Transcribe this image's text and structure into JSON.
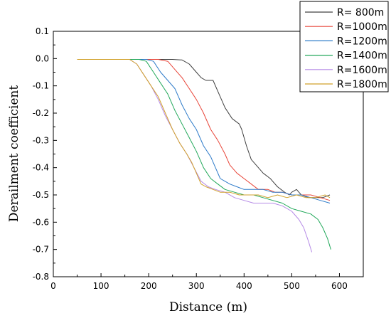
{
  "chart_data": {
    "type": "line",
    "xlabel": "Distance (m)",
    "ylabel": "Derailment coefficient",
    "xlim": [
      0,
      650
    ],
    "ylim": [
      -0.8,
      0.1
    ],
    "xticks": [
      0,
      100,
      200,
      300,
      400,
      500,
      600
    ],
    "xtick_labels": [
      "0",
      "100",
      "200",
      "300",
      "400",
      "500",
      "600"
    ],
    "yticks": [
      0.1,
      0.0,
      -0.1,
      -0.2,
      -0.3,
      -0.4,
      -0.5,
      -0.6,
      -0.7,
      -0.8
    ],
    "ytick_labels": [
      "0.1",
      "0.0",
      "-0.1",
      "-0.2",
      "-0.3",
      "-0.4",
      "-0.5",
      "-0.6",
      "-0.7",
      "-0.8"
    ],
    "grid": false,
    "legend_position": "top-right",
    "series": [
      {
        "name": "R= 800m",
        "color": "#404040",
        "points": [
          [
            50,
            -0.003
          ],
          [
            150,
            -0.003
          ],
          [
            250,
            -0.003
          ],
          [
            270,
            -0.005
          ],
          [
            285,
            -0.02
          ],
          [
            300,
            -0.05
          ],
          [
            310,
            -0.07
          ],
          [
            320,
            -0.08
          ],
          [
            335,
            -0.08
          ],
          [
            345,
            -0.12
          ],
          [
            360,
            -0.18
          ],
          [
            375,
            -0.22
          ],
          [
            390,
            -0.24
          ],
          [
            395,
            -0.26
          ],
          [
            405,
            -0.32
          ],
          [
            415,
            -0.37
          ],
          [
            425,
            -0.39
          ],
          [
            440,
            -0.42
          ],
          [
            455,
            -0.44
          ],
          [
            470,
            -0.47
          ],
          [
            485,
            -0.49
          ],
          [
            495,
            -0.5
          ],
          [
            500,
            -0.49
          ],
          [
            510,
            -0.48
          ],
          [
            520,
            -0.5
          ],
          [
            535,
            -0.51
          ],
          [
            555,
            -0.51
          ],
          [
            565,
            -0.51
          ],
          [
            580,
            -0.5
          ]
        ]
      },
      {
        "name": "R=1000m",
        "color": "#e8463a",
        "points": [
          [
            50,
            -0.003
          ],
          [
            150,
            -0.003
          ],
          [
            220,
            -0.003
          ],
          [
            240,
            -0.01
          ],
          [
            255,
            -0.04
          ],
          [
            270,
            -0.07
          ],
          [
            285,
            -0.11
          ],
          [
            300,
            -0.15
          ],
          [
            315,
            -0.2
          ],
          [
            330,
            -0.26
          ],
          [
            345,
            -0.3
          ],
          [
            360,
            -0.35
          ],
          [
            370,
            -0.39
          ],
          [
            385,
            -0.42
          ],
          [
            400,
            -0.44
          ],
          [
            415,
            -0.46
          ],
          [
            430,
            -0.48
          ],
          [
            450,
            -0.48
          ],
          [
            465,
            -0.49
          ],
          [
            480,
            -0.49
          ],
          [
            500,
            -0.5
          ],
          [
            520,
            -0.5
          ],
          [
            540,
            -0.5
          ],
          [
            560,
            -0.51
          ],
          [
            580,
            -0.52
          ]
        ]
      },
      {
        "name": "R=1200m",
        "color": "#2e7bc9",
        "points": [
          [
            50,
            -0.003
          ],
          [
            150,
            -0.003
          ],
          [
            195,
            -0.003
          ],
          [
            210,
            -0.01
          ],
          [
            225,
            -0.05
          ],
          [
            240,
            -0.08
          ],
          [
            255,
            -0.11
          ],
          [
            270,
            -0.17
          ],
          [
            285,
            -0.22
          ],
          [
            300,
            -0.26
          ],
          [
            315,
            -0.32
          ],
          [
            330,
            -0.36
          ],
          [
            340,
            -0.4
          ],
          [
            350,
            -0.44
          ],
          [
            360,
            -0.45
          ],
          [
            370,
            -0.46
          ],
          [
            385,
            -0.47
          ],
          [
            400,
            -0.48
          ],
          [
            420,
            -0.48
          ],
          [
            440,
            -0.48
          ],
          [
            460,
            -0.49
          ],
          [
            480,
            -0.49
          ],
          [
            500,
            -0.5
          ],
          [
            520,
            -0.5
          ],
          [
            540,
            -0.51
          ],
          [
            560,
            -0.52
          ],
          [
            580,
            -0.53
          ]
        ]
      },
      {
        "name": "R=1400m",
        "color": "#22a85a",
        "points": [
          [
            50,
            -0.003
          ],
          [
            150,
            -0.003
          ],
          [
            180,
            -0.003
          ],
          [
            195,
            -0.01
          ],
          [
            210,
            -0.05
          ],
          [
            225,
            -0.09
          ],
          [
            240,
            -0.13
          ],
          [
            255,
            -0.19
          ],
          [
            270,
            -0.24
          ],
          [
            285,
            -0.29
          ],
          [
            300,
            -0.34
          ],
          [
            315,
            -0.4
          ],
          [
            330,
            -0.44
          ],
          [
            345,
            -0.46
          ],
          [
            360,
            -0.48
          ],
          [
            380,
            -0.49
          ],
          [
            400,
            -0.5
          ],
          [
            420,
            -0.5
          ],
          [
            440,
            -0.51
          ],
          [
            460,
            -0.52
          ],
          [
            480,
            -0.53
          ],
          [
            500,
            -0.55
          ],
          [
            520,
            -0.56
          ],
          [
            540,
            -0.57
          ],
          [
            555,
            -0.59
          ],
          [
            565,
            -0.62
          ],
          [
            575,
            -0.66
          ],
          [
            582,
            -0.7
          ]
        ]
      },
      {
        "name": "R=1600m",
        "color": "#b58ae6",
        "points": [
          [
            50,
            -0.003
          ],
          [
            150,
            -0.003
          ],
          [
            160,
            -0.003
          ],
          [
            175,
            -0.02
          ],
          [
            190,
            -0.06
          ],
          [
            205,
            -0.1
          ],
          [
            220,
            -0.15
          ],
          [
            235,
            -0.21
          ],
          [
            250,
            -0.26
          ],
          [
            265,
            -0.31
          ],
          [
            280,
            -0.35
          ],
          [
            295,
            -0.4
          ],
          [
            310,
            -0.45
          ],
          [
            325,
            -0.47
          ],
          [
            340,
            -0.48
          ],
          [
            360,
            -0.49
          ],
          [
            380,
            -0.51
          ],
          [
            400,
            -0.52
          ],
          [
            420,
            -0.53
          ],
          [
            440,
            -0.53
          ],
          [
            460,
            -0.53
          ],
          [
            480,
            -0.54
          ],
          [
            500,
            -0.56
          ],
          [
            515,
            -0.59
          ],
          [
            525,
            -0.62
          ],
          [
            535,
            -0.67
          ],
          [
            542,
            -0.71
          ]
        ]
      },
      {
        "name": "R=1800m",
        "color": "#d1a12a",
        "points": [
          [
            50,
            -0.003
          ],
          [
            150,
            -0.003
          ],
          [
            160,
            -0.003
          ],
          [
            175,
            -0.02
          ],
          [
            190,
            -0.06
          ],
          [
            205,
            -0.1
          ],
          [
            220,
            -0.14
          ],
          [
            235,
            -0.2
          ],
          [
            250,
            -0.26
          ],
          [
            265,
            -0.31
          ],
          [
            280,
            -0.35
          ],
          [
            290,
            -0.38
          ],
          [
            300,
            -0.42
          ],
          [
            310,
            -0.46
          ],
          [
            320,
            -0.47
          ],
          [
            335,
            -0.48
          ],
          [
            350,
            -0.49
          ],
          [
            370,
            -0.49
          ],
          [
            390,
            -0.5
          ],
          [
            410,
            -0.5
          ],
          [
            430,
            -0.5
          ],
          [
            450,
            -0.51
          ],
          [
            470,
            -0.5
          ],
          [
            490,
            -0.51
          ],
          [
            510,
            -0.5
          ],
          [
            530,
            -0.51
          ],
          [
            550,
            -0.51
          ],
          [
            570,
            -0.5
          ],
          [
            580,
            -0.51
          ]
        ]
      }
    ]
  }
}
